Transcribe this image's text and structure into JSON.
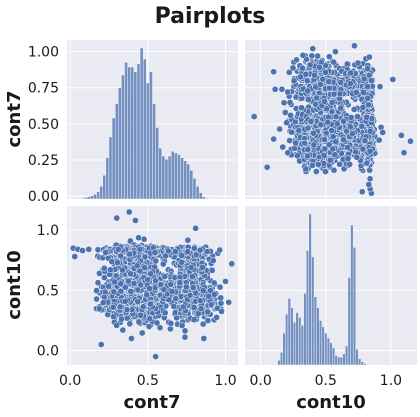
{
  "chart_data": {
    "type": "pairplot",
    "title": "Pairplots",
    "variables": [
      "cont7",
      "cont10"
    ],
    "accent_color": "#4c72b0",
    "grid": true,
    "axes": {
      "cont7": {
        "range": [
          -0.02,
          1.08
        ],
        "ticks": [
          0.0,
          0.25,
          0.5,
          0.75,
          1.0
        ],
        "tick_labels": [
          "0.00",
          "0.25",
          "0.50",
          "0.75",
          "1.00"
        ],
        "x_ticks": [
          0.0,
          0.5,
          1.0
        ],
        "x_tick_labels": [
          "0.0",
          "0.5",
          "1.0"
        ]
      },
      "cont10": {
        "range": [
          -0.12,
          1.2
        ],
        "ticks": [
          0.0,
          0.5,
          1.0
        ],
        "tick_labels": [
          "0.0",
          "0.5",
          "1.0"
        ],
        "x_ticks": [
          0.0,
          0.5,
          1.0
        ],
        "x_tick_labels": [
          "0.0",
          "0.5",
          "1.0"
        ]
      }
    },
    "hist_cont7": {
      "bin_start": 0.07,
      "bin_width": 0.02,
      "heights": [
        0.005,
        0.01,
        0.015,
        0.02,
        0.03,
        0.045,
        0.08,
        0.15,
        0.26,
        0.39,
        0.51,
        0.6,
        0.7,
        0.78,
        0.86,
        0.83,
        0.83,
        0.8,
        0.85,
        0.95,
        0.88,
        0.73,
        0.8,
        0.6,
        0.45,
        0.32,
        0.27,
        0.25,
        0.27,
        0.3,
        0.29,
        0.28,
        0.26,
        0.24,
        0.22,
        0.18,
        0.13,
        0.08,
        0.04,
        0.015,
        0.005,
        0.002
      ],
      "density_scale": [
        0.0,
        1.0
      ]
    },
    "hist_cont10": {
      "bin_start": 0.13,
      "bin_width": 0.02,
      "heights": [
        0.03,
        0.08,
        0.2,
        0.32,
        0.42,
        0.36,
        0.27,
        0.33,
        0.3,
        0.25,
        0.45,
        0.72,
        0.95,
        0.68,
        0.43,
        0.36,
        0.28,
        0.24,
        0.2,
        0.17,
        0.14,
        0.11,
        0.06,
        0.05,
        0.05,
        0.07,
        0.12,
        0.55,
        0.88,
        0.74,
        0.1,
        0.04,
        0.02,
        0.01
      ],
      "density_scale": [
        0.0,
        1.0
      ]
    },
    "scatter": {
      "n_points": 2500,
      "cont7_main": {
        "mean": 0.42,
        "sd": 0.09
      },
      "cont7_secondary": {
        "mean": 0.78,
        "sd": 0.08,
        "share": 0.27
      },
      "cont10_low": {
        "mean": 0.42,
        "sd": 0.08,
        "share": 0.42
      },
      "cont10_mid": {
        "mean": 0.58,
        "sd": 0.12,
        "share": 0.38
      },
      "cont10_high": {
        "mean": 0.82,
        "sd": 0.02,
        "share": 0.2
      },
      "outliers": [
        {
          "x": 0.02,
          "y": 0.85
        },
        {
          "x": 0.05,
          "y": 0.84
        },
        {
          "x": 0.08,
          "y": 0.83
        },
        {
          "x": 0.12,
          "y": 0.84
        },
        {
          "x": 0.03,
          "y": 0.78
        },
        {
          "x": 0.38,
          "y": 1.15
        },
        {
          "x": 0.3,
          "y": 1.1
        },
        {
          "x": 0.42,
          "y": 1.08
        },
        {
          "x": 0.55,
          "y": -0.05
        },
        {
          "x": 0.2,
          "y": 0.05
        },
        {
          "x": 1.04,
          "y": 0.72
        },
        {
          "x": 1.02,
          "y": 0.4
        }
      ]
    }
  }
}
